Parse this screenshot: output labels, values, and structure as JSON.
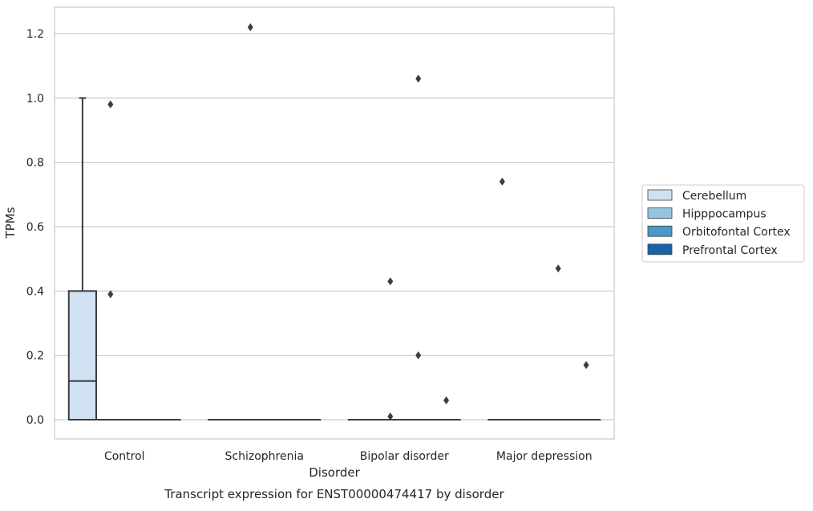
{
  "chart_data": {
    "type": "box",
    "caption": "Transcript expression for ENST00000474417 by disorder",
    "xlabel": "Disorder",
    "ylabel": "TPMs",
    "ylim": [
      -0.06,
      1.28
    ],
    "yticks": [
      0.0,
      0.2,
      0.4,
      0.6,
      0.8,
      1.0,
      1.2
    ],
    "ytick_labels": [
      "0.0",
      "0.2",
      "0.4",
      "0.6",
      "0.8",
      "1.0",
      "1.2"
    ],
    "grid": "horizontal",
    "legend_position": "right",
    "categories": [
      "Control",
      "Schizophrenia",
      "Bipolar disorder",
      "Major depression"
    ],
    "series": [
      {
        "name": "Cerebellum",
        "color": "#d0e1f2",
        "boxes": [
          {
            "category": "Control",
            "q1": 0.0,
            "median": 0.12,
            "q3": 0.4,
            "whisker_low": 0.0,
            "whisker_high": 1.0,
            "outliers": []
          },
          {
            "category": "Schizophrenia",
            "q1": 0.0,
            "median": 0.0,
            "q3": 0.0,
            "whisker_low": 0.0,
            "whisker_high": 0.0,
            "outliers": []
          },
          {
            "category": "Bipolar disorder",
            "q1": 0.0,
            "median": 0.0,
            "q3": 0.0,
            "whisker_low": 0.0,
            "whisker_high": 0.0,
            "outliers": []
          },
          {
            "category": "Major depression",
            "q1": 0.0,
            "median": 0.0,
            "q3": 0.0,
            "whisker_low": 0.0,
            "whisker_high": 0.0,
            "outliers": [
              0.74
            ]
          }
        ]
      },
      {
        "name": "Hipppocampus",
        "color": "#94c4df",
        "boxes": [
          {
            "category": "Control",
            "q1": 0.0,
            "median": 0.0,
            "q3": 0.0,
            "whisker_low": 0.0,
            "whisker_high": 0.0,
            "outliers": [
              0.98,
              0.39
            ]
          },
          {
            "category": "Schizophrenia",
            "q1": 0.0,
            "median": 0.0,
            "q3": 0.0,
            "whisker_low": 0.0,
            "whisker_high": 0.0,
            "outliers": [
              1.22
            ]
          },
          {
            "category": "Bipolar disorder",
            "q1": 0.0,
            "median": 0.0,
            "q3": 0.0,
            "whisker_low": 0.0,
            "whisker_high": 0.0,
            "outliers": [
              0.43,
              0.01
            ]
          },
          {
            "category": "Major depression",
            "q1": 0.0,
            "median": 0.0,
            "q3": 0.0,
            "whisker_low": 0.0,
            "whisker_high": 0.0,
            "outliers": []
          }
        ]
      },
      {
        "name": "Orbitofontal Cortex",
        "color": "#4a98c9",
        "boxes": [
          {
            "category": "Control",
            "q1": 0.0,
            "median": 0.0,
            "q3": 0.0,
            "whisker_low": 0.0,
            "whisker_high": 0.0,
            "outliers": []
          },
          {
            "category": "Schizophrenia",
            "q1": 0.0,
            "median": 0.0,
            "q3": 0.0,
            "whisker_low": 0.0,
            "whisker_high": 0.0,
            "outliers": []
          },
          {
            "category": "Bipolar disorder",
            "q1": 0.0,
            "median": 0.0,
            "q3": 0.0,
            "whisker_low": 0.0,
            "whisker_high": 0.0,
            "outliers": [
              1.06,
              0.2
            ]
          },
          {
            "category": "Major depression",
            "q1": 0.0,
            "median": 0.0,
            "q3": 0.0,
            "whisker_low": 0.0,
            "whisker_high": 0.0,
            "outliers": [
              0.47
            ]
          }
        ]
      },
      {
        "name": "Prefrontal Cortex",
        "color": "#1764ab",
        "boxes": [
          {
            "category": "Control",
            "q1": 0.0,
            "median": 0.0,
            "q3": 0.0,
            "whisker_low": 0.0,
            "whisker_high": 0.0,
            "outliers": []
          },
          {
            "category": "Schizophrenia",
            "q1": 0.0,
            "median": 0.0,
            "q3": 0.0,
            "whisker_low": 0.0,
            "whisker_high": 0.0,
            "outliers": []
          },
          {
            "category": "Bipolar disorder",
            "q1": 0.0,
            "median": 0.0,
            "q3": 0.0,
            "whisker_low": 0.0,
            "whisker_high": 0.0,
            "outliers": [
              0.06
            ]
          },
          {
            "category": "Major depression",
            "q1": 0.0,
            "median": 0.0,
            "q3": 0.0,
            "whisker_low": 0.0,
            "whisker_high": 0.0,
            "outliers": [
              0.17
            ]
          }
        ]
      }
    ]
  }
}
